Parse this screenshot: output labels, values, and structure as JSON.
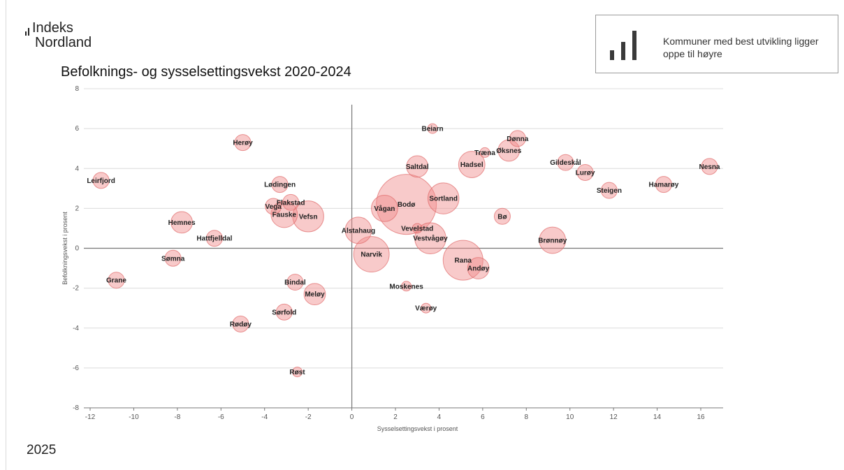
{
  "header": {
    "logo_line1": "Indeks",
    "logo_line2": "Nordland",
    "title": "Befolknings- og sysselsettingsvekst 2020-2024"
  },
  "note": {
    "text": "Kommuner med best utvikling ligger oppe til høyre",
    "icon": "bar-chart-icon"
  },
  "footer": {
    "year": "2025"
  },
  "colors": {
    "bubble_fill": "#f08a8a",
    "bubble_stroke": "#e06a6a",
    "grid": "#dcdcdc",
    "axis": "#777777"
  },
  "chart_data": {
    "type": "scatter",
    "xlabel": "Sysselsettingsvekst i prosent",
    "ylabel": "Befolkningsvekst i prosent",
    "xlim": [
      -12,
      17
    ],
    "ylim": [
      -8,
      8
    ],
    "xticks": [
      -12,
      -10,
      -8,
      -6,
      -4,
      -2,
      0,
      2,
      4,
      6,
      8,
      10,
      12,
      14,
      16
    ],
    "yticks": [
      -8,
      -6,
      -4,
      -2,
      0,
      2,
      4,
      6,
      8
    ],
    "grid": "horizontal",
    "size_note": "bubble size relative to municipality population (1-10)",
    "points": [
      {
        "name": "Leirfjord",
        "x": -11.5,
        "y": 3.4,
        "size": 2
      },
      {
        "name": "Herøy",
        "x": -5.0,
        "y": 5.3,
        "size": 2
      },
      {
        "name": "Lødingen",
        "x": -3.3,
        "y": 3.2,
        "size": 2
      },
      {
        "name": "Flakstad",
        "x": -2.8,
        "y": 2.3,
        "size": 2
      },
      {
        "name": "Vega",
        "x": -3.6,
        "y": 2.1,
        "size": 2
      },
      {
        "name": "Fauske",
        "x": -3.1,
        "y": 1.7,
        "size": 4
      },
      {
        "name": "Vefsn",
        "x": -2.0,
        "y": 1.6,
        "size": 5
      },
      {
        "name": "Hemnes",
        "x": -7.8,
        "y": 1.3,
        "size": 3
      },
      {
        "name": "Hattfjelldal",
        "x": -6.3,
        "y": 0.5,
        "size": 2
      },
      {
        "name": "Sømna",
        "x": -8.2,
        "y": -0.5,
        "size": 2
      },
      {
        "name": "Grane",
        "x": -10.8,
        "y": -1.6,
        "size": 2
      },
      {
        "name": "Bindal",
        "x": -2.6,
        "y": -1.7,
        "size": 2
      },
      {
        "name": "Meløy",
        "x": -1.7,
        "y": -2.3,
        "size": 3
      },
      {
        "name": "Sørfold",
        "x": -3.1,
        "y": -3.2,
        "size": 2
      },
      {
        "name": "Rødøy",
        "x": -5.1,
        "y": -3.8,
        "size": 2
      },
      {
        "name": "Røst",
        "x": -2.5,
        "y": -6.2,
        "size": 1
      },
      {
        "name": "Beiarn",
        "x": 3.7,
        "y": 6.0,
        "size": 1
      },
      {
        "name": "Dønna",
        "x": 7.6,
        "y": 5.5,
        "size": 2
      },
      {
        "name": "Træna",
        "x": 6.1,
        "y": 4.8,
        "size": 1
      },
      {
        "name": "Øksnes",
        "x": 7.2,
        "y": 4.9,
        "size": 3
      },
      {
        "name": "Hadsel",
        "x": 5.5,
        "y": 4.2,
        "size": 4
      },
      {
        "name": "Saltdal",
        "x": 3.0,
        "y": 4.1,
        "size": 3
      },
      {
        "name": "Gildeskål",
        "x": 9.8,
        "y": 4.3,
        "size": 2
      },
      {
        "name": "Lurøy",
        "x": 10.7,
        "y": 3.8,
        "size": 2
      },
      {
        "name": "Nesna",
        "x": 16.4,
        "y": 4.1,
        "size": 2
      },
      {
        "name": "Hamarøy",
        "x": 14.3,
        "y": 3.2,
        "size": 2
      },
      {
        "name": "Steigen",
        "x": 11.8,
        "y": 2.9,
        "size": 2
      },
      {
        "name": "Sortland",
        "x": 4.2,
        "y": 2.5,
        "size": 5
      },
      {
        "name": "Bodø",
        "x": 2.5,
        "y": 2.2,
        "size": 10
      },
      {
        "name": "Vågan",
        "x": 1.5,
        "y": 2.0,
        "size": 4
      },
      {
        "name": "Bø",
        "x": 6.9,
        "y": 1.6,
        "size": 2
      },
      {
        "name": "Alstahaug",
        "x": 0.3,
        "y": 0.9,
        "size": 4
      },
      {
        "name": "Vevelstad",
        "x": 3.0,
        "y": 1.0,
        "size": 1
      },
      {
        "name": "Vestvågøy",
        "x": 3.6,
        "y": 0.5,
        "size": 5
      },
      {
        "name": "Brønnøy",
        "x": 9.2,
        "y": 0.4,
        "size": 4
      },
      {
        "name": "Narvik",
        "x": 0.9,
        "y": -0.3,
        "size": 6
      },
      {
        "name": "Rana",
        "x": 5.1,
        "y": -0.6,
        "size": 7
      },
      {
        "name": "Andøy",
        "x": 5.8,
        "y": -1.0,
        "size": 3
      },
      {
        "name": "Moskenes",
        "x": 2.5,
        "y": -1.9,
        "size": 1
      },
      {
        "name": "Værøy",
        "x": 3.4,
        "y": -3.0,
        "size": 1
      }
    ]
  }
}
